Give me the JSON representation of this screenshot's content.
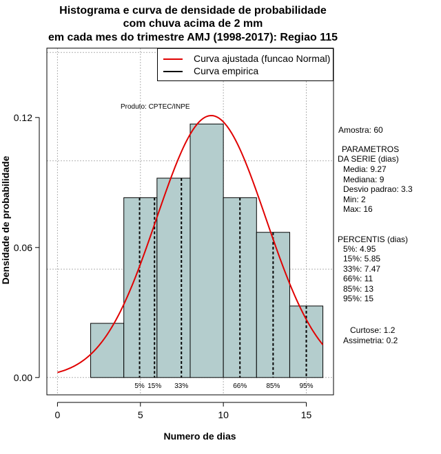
{
  "title": {
    "line1": "Histograma e curva de densidade de probabilidade",
    "line2": "com chuva acima de 2 mm",
    "line3": "em cada mes do trimestre AMJ (1998-2017): Regiao 115"
  },
  "product_label": "Produto: CPTEC/INPE",
  "legend": {
    "fitted_label": "Curva ajustada (funcao Normal)",
    "empirical_label": "Curva empirica"
  },
  "side_panel": {
    "amostra": "Amostra: 60",
    "params_title1": "PARAMETROS",
    "params_title2": "DA SERIE (dias)",
    "media": "Media: 9.27",
    "mediana": "Mediana: 9",
    "desvio": "Desvio padrao: 3.3",
    "min": "Min: 2",
    "max": "Max: 16",
    "percentis_title": "PERCENTIS (dias)",
    "p5": "5%: 4.95",
    "p15": "15%: 5.85",
    "p33": "33%: 7.47",
    "p66": "66%: 11",
    "p85": "85%: 13",
    "p95": "95%: 15",
    "curtose": "Curtose: 1.2",
    "assimetria": "Assimetria: 0.2"
  },
  "colors": {
    "bar_fill": "#b4cdcd",
    "fitted_curve": "#e00000",
    "grid": "#b0b0b0"
  },
  "chart_data": {
    "type": "bar",
    "title": "Histograma e curva de densidade de probabilidade com chuva acima de 2 mm em cada mes do trimestre AMJ (1998-2017): Regiao 115",
    "xlabel": "Numero de dias",
    "ylabel": "Densidade de probabilidade",
    "xlim": [
      -0.64,
      16.64
    ],
    "ylim": [
      -0.008,
      0.152
    ],
    "x_ticks": [
      0,
      5,
      10,
      15
    ],
    "y_ticks": [
      0.0,
      0.06,
      0.12
    ],
    "y_tick_labels": [
      "0.00",
      "0.06",
      "0.12"
    ],
    "x_grid": [
      0,
      5,
      10,
      15
    ],
    "y_grid": [
      0.0,
      0.05,
      0.1,
      0.15
    ],
    "bins": [
      {
        "from": 2,
        "to": 4,
        "density": 0.025
      },
      {
        "from": 4,
        "to": 6,
        "density": 0.083
      },
      {
        "from": 6,
        "to": 8,
        "density": 0.092
      },
      {
        "from": 8,
        "to": 10,
        "density": 0.117
      },
      {
        "from": 10,
        "to": 12,
        "density": 0.083
      },
      {
        "from": 12,
        "to": 14,
        "density": 0.067
      },
      {
        "from": 14,
        "to": 16,
        "density": 0.033
      }
    ],
    "normal_fit": {
      "mean": 9.27,
      "sd": 3.3,
      "from": 0,
      "to": 16
    },
    "percentiles": [
      {
        "label": "5%",
        "x": 4.95
      },
      {
        "label": "15%",
        "x": 5.85
      },
      {
        "label": "33%",
        "x": 7.47
      },
      {
        "label": "66%",
        "x": 11
      },
      {
        "label": "85%",
        "x": 13
      },
      {
        "label": "95%",
        "x": 15
      }
    ]
  }
}
